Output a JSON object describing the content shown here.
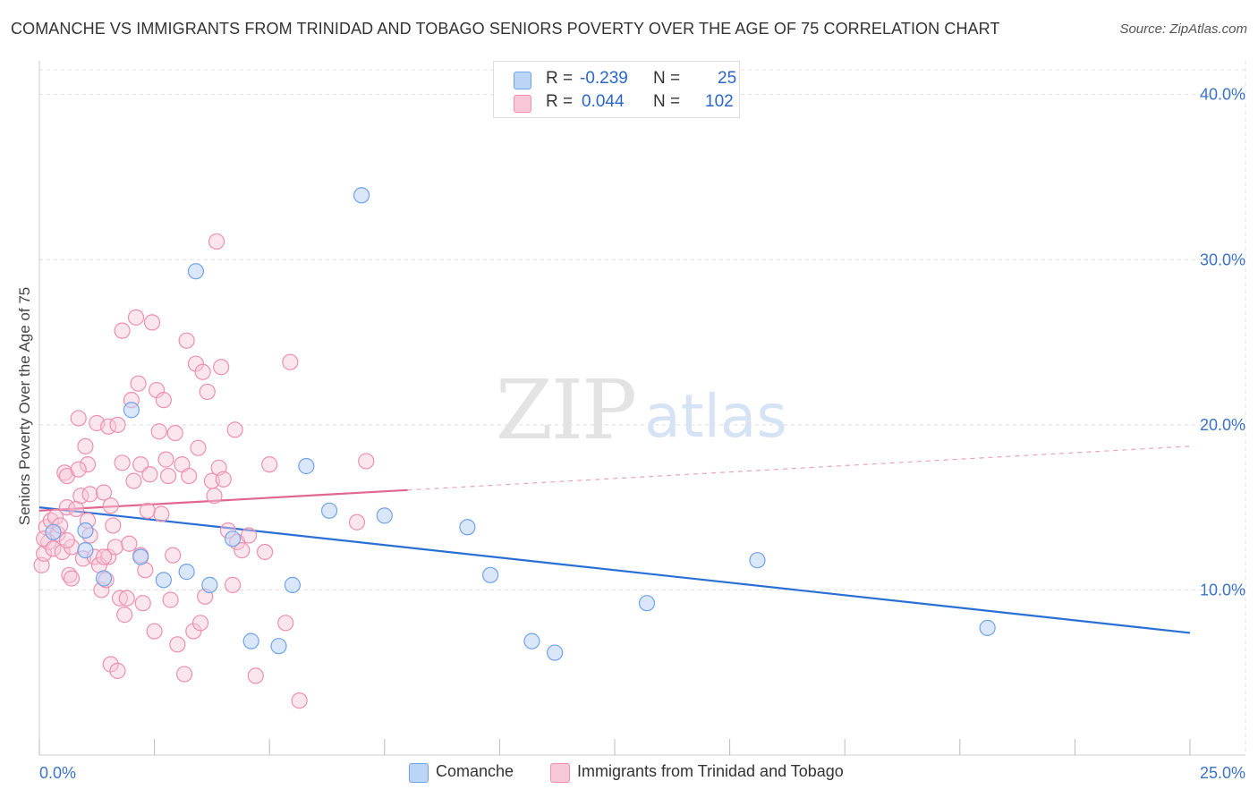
{
  "header": {
    "title": "COMANCHE VS IMMIGRANTS FROM TRINIDAD AND TOBAGO SENIORS POVERTY OVER THE AGE OF 75 CORRELATION CHART",
    "source": "Source: ZipAtlas.com"
  },
  "watermark": {
    "zip": "ZIP",
    "atlas": "atlas"
  },
  "legend": {
    "r_label": "R =",
    "n_label": "N =",
    "series": [
      {
        "name": "Comanche",
        "r": "-0.239",
        "n": "25",
        "color": "#6fa3e8",
        "fill": "#bcd4f5"
      },
      {
        "name": "Immigrants from Trinidad and Tobago",
        "r": "0.044",
        "n": "102",
        "color": "#ee8fb0",
        "fill": "#f8c7d7"
      }
    ]
  },
  "chart_data": {
    "type": "scatter",
    "title": "COMANCHE VS IMMIGRANTS FROM TRINIDAD AND TOBAGO SENIORS POVERTY OVER THE AGE OF 75 CORRELATION CHART",
    "xlabel": "",
    "ylabel": "Seniors Poverty Over the Age of 75",
    "xlim": [
      0,
      25
    ],
    "ylim": [
      0,
      41.5
    ],
    "x_tick_labels": [
      "0.0%",
      "25.0%"
    ],
    "y_ticks": [
      10,
      20,
      30,
      40
    ],
    "y_tick_labels": [
      "10.0%",
      "20.0%",
      "30.0%",
      "40.0%"
    ],
    "grid": true,
    "legend_position": "top-center",
    "series": [
      {
        "name": "Comanche",
        "color": "#2a6fd3",
        "trend": {
          "x0": 0,
          "y0": 15.0,
          "x1": 25,
          "y1": 7.4,
          "solid_to": 25
        },
        "points": [
          [
            1.0,
            12.4
          ],
          [
            1.0,
            13.6
          ],
          [
            1.4,
            10.7
          ],
          [
            2.0,
            20.9
          ],
          [
            2.2,
            12.0
          ],
          [
            3.4,
            29.3
          ],
          [
            2.7,
            10.6
          ],
          [
            3.2,
            11.1
          ],
          [
            3.7,
            10.3
          ],
          [
            4.2,
            13.1
          ],
          [
            4.6,
            6.9
          ],
          [
            5.2,
            6.6
          ],
          [
            5.5,
            10.3
          ],
          [
            5.8,
            17.5
          ],
          [
            6.3,
            14.8
          ],
          [
            7.0,
            33.9
          ],
          [
            7.5,
            14.5
          ],
          [
            9.3,
            13.8
          ],
          [
            9.8,
            10.9
          ],
          [
            10.7,
            6.9
          ],
          [
            11.2,
            6.2
          ],
          [
            13.2,
            9.2
          ],
          [
            15.6,
            11.8
          ],
          [
            20.6,
            7.7
          ],
          [
            0.3,
            13.5
          ]
        ]
      },
      {
        "name": "Immigrants from Trinidad and Tobago",
        "color": "#e0658f",
        "trend": {
          "x0": 0,
          "y0": 14.8,
          "x1": 25,
          "y1": 18.7,
          "solid_to": 8.0
        },
        "points": [
          [
            0.05,
            11.5
          ],
          [
            0.1,
            12.2
          ],
          [
            0.15,
            13.8
          ],
          [
            0.2,
            12.9
          ],
          [
            0.25,
            14.2
          ],
          [
            0.1,
            13.1
          ],
          [
            0.3,
            12.5
          ],
          [
            0.35,
            14.4
          ],
          [
            0.4,
            13.4
          ],
          [
            0.45,
            13.9
          ],
          [
            0.5,
            12.3
          ],
          [
            0.55,
            17.1
          ],
          [
            0.6,
            16.9
          ],
          [
            0.6,
            15.0
          ],
          [
            0.65,
            10.9
          ],
          [
            0.7,
            12.6
          ],
          [
            0.7,
            10.7
          ],
          [
            0.8,
            14.9
          ],
          [
            0.85,
            20.4
          ],
          [
            0.9,
            15.7
          ],
          [
            0.95,
            11.9
          ],
          [
            1.0,
            18.7
          ],
          [
            1.05,
            17.6
          ],
          [
            1.1,
            13.3
          ],
          [
            1.1,
            15.8
          ],
          [
            1.2,
            12.0
          ],
          [
            1.25,
            20.1
          ],
          [
            1.3,
            11.5
          ],
          [
            1.35,
            10.0
          ],
          [
            1.4,
            15.9
          ],
          [
            1.45,
            10.6
          ],
          [
            1.5,
            12.0
          ],
          [
            1.5,
            19.9
          ],
          [
            1.55,
            15.1
          ],
          [
            1.6,
            13.9
          ],
          [
            1.65,
            12.6
          ],
          [
            1.7,
            20.0
          ],
          [
            1.75,
            9.5
          ],
          [
            1.8,
            17.7
          ],
          [
            1.8,
            25.7
          ],
          [
            1.85,
            8.5
          ],
          [
            1.9,
            9.5
          ],
          [
            1.95,
            12.8
          ],
          [
            2.0,
            21.5
          ],
          [
            2.05,
            16.6
          ],
          [
            2.1,
            26.5
          ],
          [
            2.15,
            22.5
          ],
          [
            2.2,
            17.6
          ],
          [
            2.25,
            9.2
          ],
          [
            2.3,
            11.2
          ],
          [
            2.35,
            14.8
          ],
          [
            2.4,
            17.0
          ],
          [
            2.45,
            26.2
          ],
          [
            2.5,
            7.5
          ],
          [
            2.55,
            22.1
          ],
          [
            2.6,
            19.6
          ],
          [
            2.65,
            14.6
          ],
          [
            2.7,
            21.5
          ],
          [
            2.75,
            17.9
          ],
          [
            2.8,
            16.9
          ],
          [
            2.85,
            9.4
          ],
          [
            2.9,
            12.1
          ],
          [
            2.95,
            19.5
          ],
          [
            3.0,
            6.7
          ],
          [
            3.1,
            17.6
          ],
          [
            3.15,
            4.9
          ],
          [
            3.2,
            25.1
          ],
          [
            3.25,
            16.9
          ],
          [
            3.35,
            7.5
          ],
          [
            3.4,
            23.7
          ],
          [
            3.45,
            18.6
          ],
          [
            3.5,
            8.0
          ],
          [
            3.55,
            23.2
          ],
          [
            3.6,
            9.6
          ],
          [
            3.65,
            22.0
          ],
          [
            3.75,
            16.6
          ],
          [
            3.8,
            15.7
          ],
          [
            3.85,
            31.1
          ],
          [
            3.9,
            17.4
          ],
          [
            3.95,
            23.5
          ],
          [
            4.0,
            16.7
          ],
          [
            4.1,
            13.6
          ],
          [
            4.2,
            10.3
          ],
          [
            4.25,
            19.7
          ],
          [
            4.3,
            12.9
          ],
          [
            4.4,
            12.4
          ],
          [
            4.55,
            13.3
          ],
          [
            4.7,
            4.8
          ],
          [
            4.9,
            12.3
          ],
          [
            5.0,
            17.6
          ],
          [
            5.35,
            8.0
          ],
          [
            5.45,
            23.8
          ],
          [
            5.65,
            3.3
          ],
          [
            6.9,
            14.1
          ],
          [
            7.1,
            17.8
          ],
          [
            1.55,
            5.5
          ],
          [
            1.7,
            5.1
          ],
          [
            2.2,
            12.1
          ],
          [
            1.05,
            14.2
          ],
          [
            1.4,
            12.0
          ],
          [
            0.6,
            13.0
          ],
          [
            0.85,
            17.3
          ]
        ]
      }
    ]
  }
}
